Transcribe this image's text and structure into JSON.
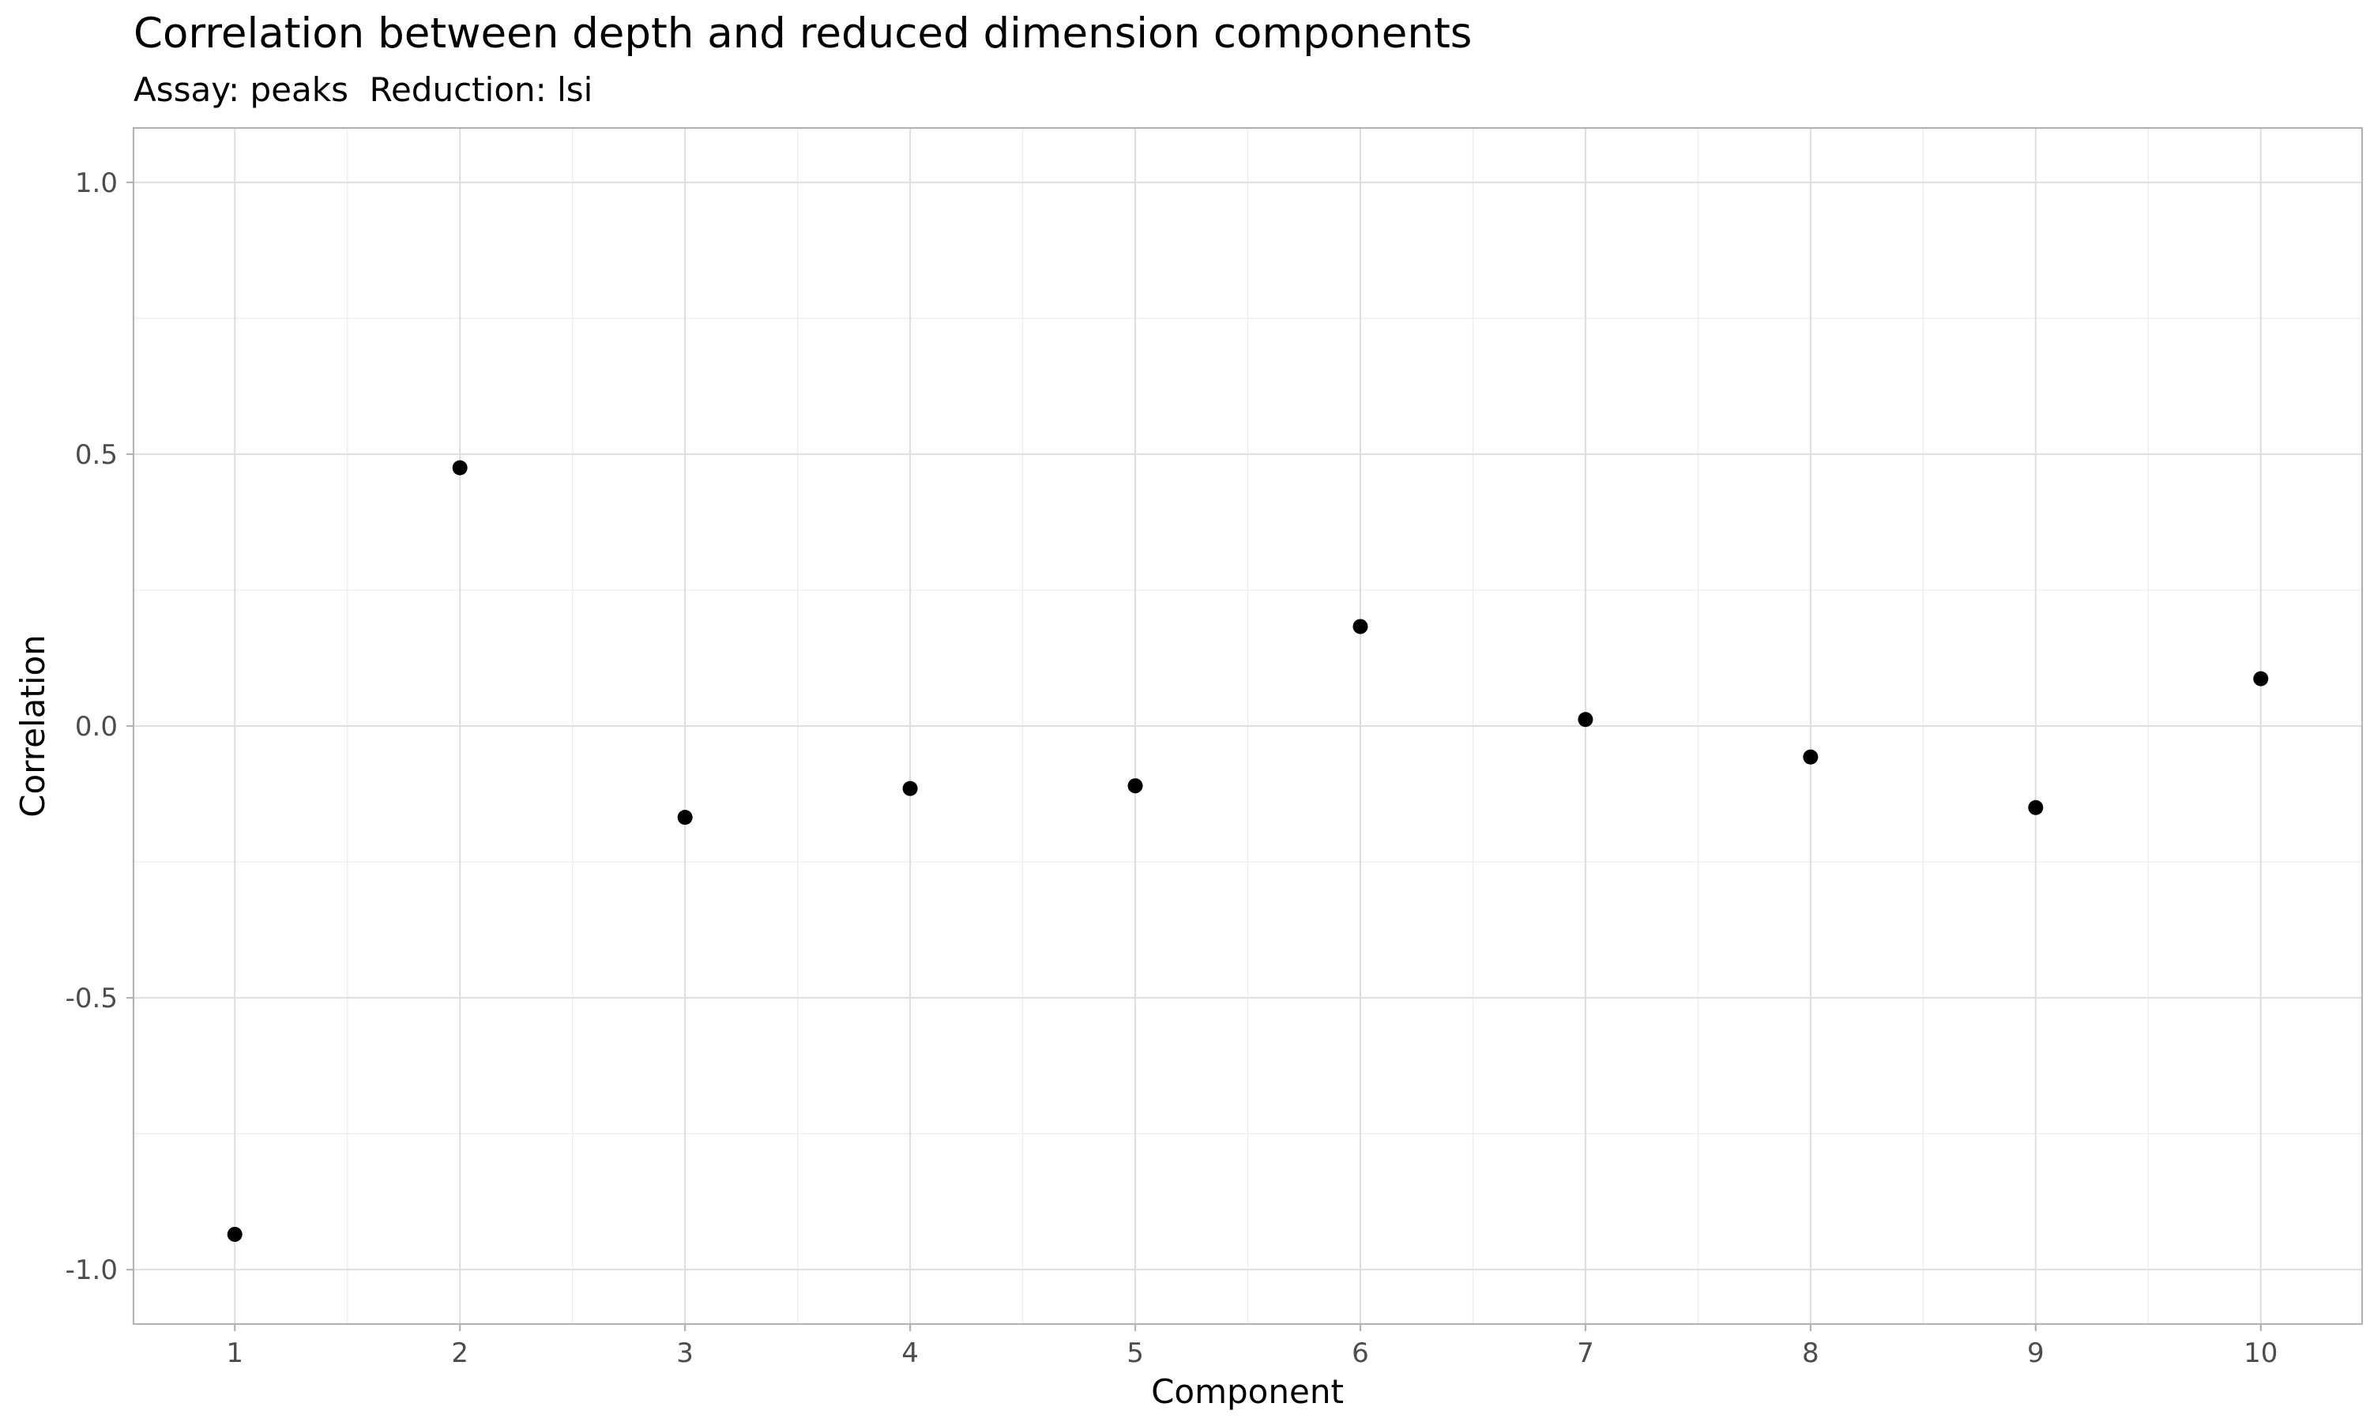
{
  "chart_data": {
    "type": "scatter",
    "title": "Correlation between depth and reduced dimension components",
    "subtitle": "Assay: peaks  Reduction: lsi",
    "xlabel": "Component",
    "ylabel": "Correlation",
    "x": [
      1,
      2,
      3,
      4,
      5,
      6,
      7,
      8,
      9,
      10
    ],
    "y": [
      -0.935,
      0.475,
      -0.168,
      -0.115,
      -0.11,
      0.183,
      0.012,
      -0.057,
      -0.15,
      0.087
    ],
    "xlim": [
      0.55,
      10.45
    ],
    "ylim": [
      -1.1,
      1.1
    ],
    "x_ticks": [
      1,
      2,
      3,
      4,
      5,
      6,
      7,
      8,
      9,
      10
    ],
    "x_tick_labels": [
      "1",
      "2",
      "3",
      "4",
      "5",
      "6",
      "7",
      "8",
      "9",
      "10"
    ],
    "y_ticks": [
      -1.0,
      -0.5,
      0.0,
      0.5,
      1.0
    ],
    "y_tick_labels": [
      "-1.0",
      "-0.5",
      "0.0",
      "0.5",
      "1.0"
    ],
    "y_minor_ticks": [
      -0.75,
      -0.25,
      0.25,
      0.75
    ],
    "x_minor_ticks": [
      1.5,
      2.5,
      3.5,
      4.5,
      5.5,
      6.5,
      7.5,
      8.5,
      9.5
    ],
    "grid": true,
    "legend": "none",
    "point_color": "#000000"
  }
}
